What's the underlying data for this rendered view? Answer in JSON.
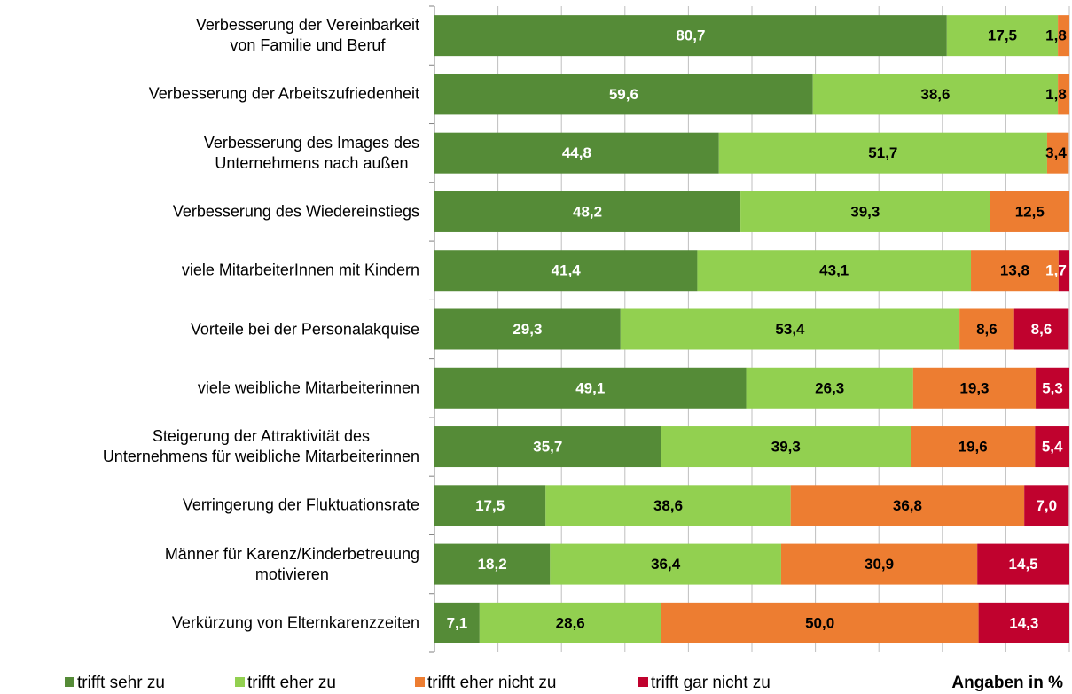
{
  "chart_data": {
    "type": "stacked_bar_horizontal",
    "categories": [
      "Verbesserung der Vereinbarkeit\nvon Familie und Beruf",
      "Verbesserung der Arbeitszufriedenheit",
      "Verbesserung des Images des\nUnternehmens nach außen",
      "Verbesserung des Wiedereinstiegs",
      "viele MitarbeiterInnen mit Kindern",
      "Vorteile bei der Personalakquise",
      "viele weibliche Mitarbeiterinnen",
      "Steigerung der Attraktivität des\nUnternehmens für weibliche Mitarbeiterinnen",
      "Verringerung der Fluktuationsrate",
      "Männer für Karenz/Kinderbetreuung\nmotivieren",
      "Verkürzung von Elternkarenzzeiten"
    ],
    "series": [
      {
        "name": "trifft sehr zu",
        "color": "#558b37",
        "label_color": "#ffffff",
        "values": [
          80.7,
          59.6,
          44.8,
          48.2,
          41.4,
          29.3,
          49.1,
          35.7,
          17.5,
          18.2,
          7.1
        ],
        "value_labels": [
          "80,7",
          "59,6",
          "44,8",
          "48,2",
          "41,4",
          "29,3",
          "49,1",
          "35,7",
          "17,5",
          "18,2",
          "7,1"
        ]
      },
      {
        "name": "trifft eher zu",
        "color": "#92d050",
        "label_color": "#000000",
        "values": [
          17.5,
          38.6,
          51.7,
          39.3,
          43.1,
          53.4,
          26.3,
          39.3,
          38.6,
          36.4,
          28.6
        ],
        "value_labels": [
          "17,5",
          "38,6",
          "51,7",
          "39,3",
          "43,1",
          "53,4",
          "26,3",
          "39,3",
          "38,6",
          "36,4",
          "28,6"
        ]
      },
      {
        "name": "trifft eher nicht zu",
        "color": "#ed7d31",
        "label_color": "#000000",
        "values": [
          1.8,
          1.8,
          3.4,
          12.5,
          13.8,
          8.6,
          19.3,
          19.6,
          36.8,
          30.9,
          50.0
        ],
        "value_labels": [
          "1,8",
          "1,8",
          "3,4",
          "12,5",
          "13,8",
          "8,6",
          "19,3",
          "19,6",
          "36,8",
          "30,9",
          "50,0"
        ]
      },
      {
        "name": "trifft gar nicht zu",
        "color": "#c0022e",
        "label_color": "#ffffff",
        "values": [
          null,
          null,
          null,
          null,
          1.7,
          8.6,
          5.3,
          5.4,
          7.0,
          14.5,
          14.3
        ],
        "value_labels": [
          null,
          null,
          null,
          null,
          "1,7",
          "8,6",
          "5,3",
          "5,4",
          "7,0",
          "14,5",
          "14,3"
        ]
      }
    ],
    "xlim": [
      0,
      100
    ],
    "xticks": [
      0,
      10,
      20,
      30,
      40,
      50,
      60,
      70,
      80,
      90,
      100
    ],
    "grid": true,
    "annotation": "Angaben in %",
    "legend": "bottom"
  }
}
